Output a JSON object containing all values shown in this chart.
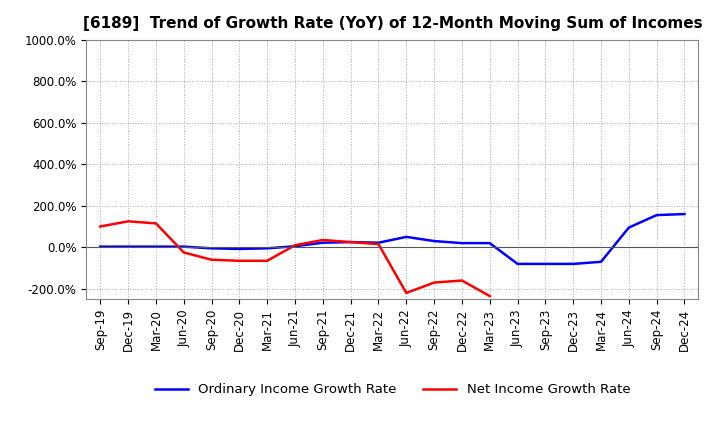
{
  "title": "[6189]  Trend of Growth Rate (YoY) of 12-Month Moving Sum of Incomes",
  "x_labels": [
    "Sep-19",
    "Dec-19",
    "Mar-20",
    "Jun-20",
    "Sep-20",
    "Dec-20",
    "Mar-21",
    "Jun-21",
    "Sep-21",
    "Dec-21",
    "Mar-22",
    "Jun-22",
    "Sep-22",
    "Dec-22",
    "Mar-23",
    "Jun-23",
    "Sep-23",
    "Dec-23",
    "Mar-24",
    "Jun-24",
    "Sep-24",
    "Dec-24"
  ],
  "ordinary_income": [
    3,
    3,
    3,
    3,
    -5,
    -8,
    -5,
    5,
    22,
    25,
    22,
    50,
    30,
    20,
    20,
    -80,
    -80,
    -80,
    -70,
    95,
    155,
    160
  ],
  "net_income": [
    100,
    125,
    115,
    -25,
    -60,
    -65,
    -65,
    10,
    35,
    25,
    15,
    -220,
    -170,
    -160,
    -235,
    null,
    null,
    null,
    null,
    null,
    null,
    null
  ],
  "ylim": [
    -250,
    1000
  ],
  "yticks": [
    -200,
    0,
    200,
    400,
    600,
    800,
    1000
  ],
  "ordinary_color": "#0000FF",
  "net_color": "#FF0000",
  "legend_ordinary": "Ordinary Income Growth Rate",
  "legend_net": "Net Income Growth Rate",
  "background_color": "#FFFFFF",
  "grid_color": "#AAAAAA",
  "title_fontsize": 11,
  "tick_fontsize": 8.5,
  "legend_fontsize": 9.5
}
